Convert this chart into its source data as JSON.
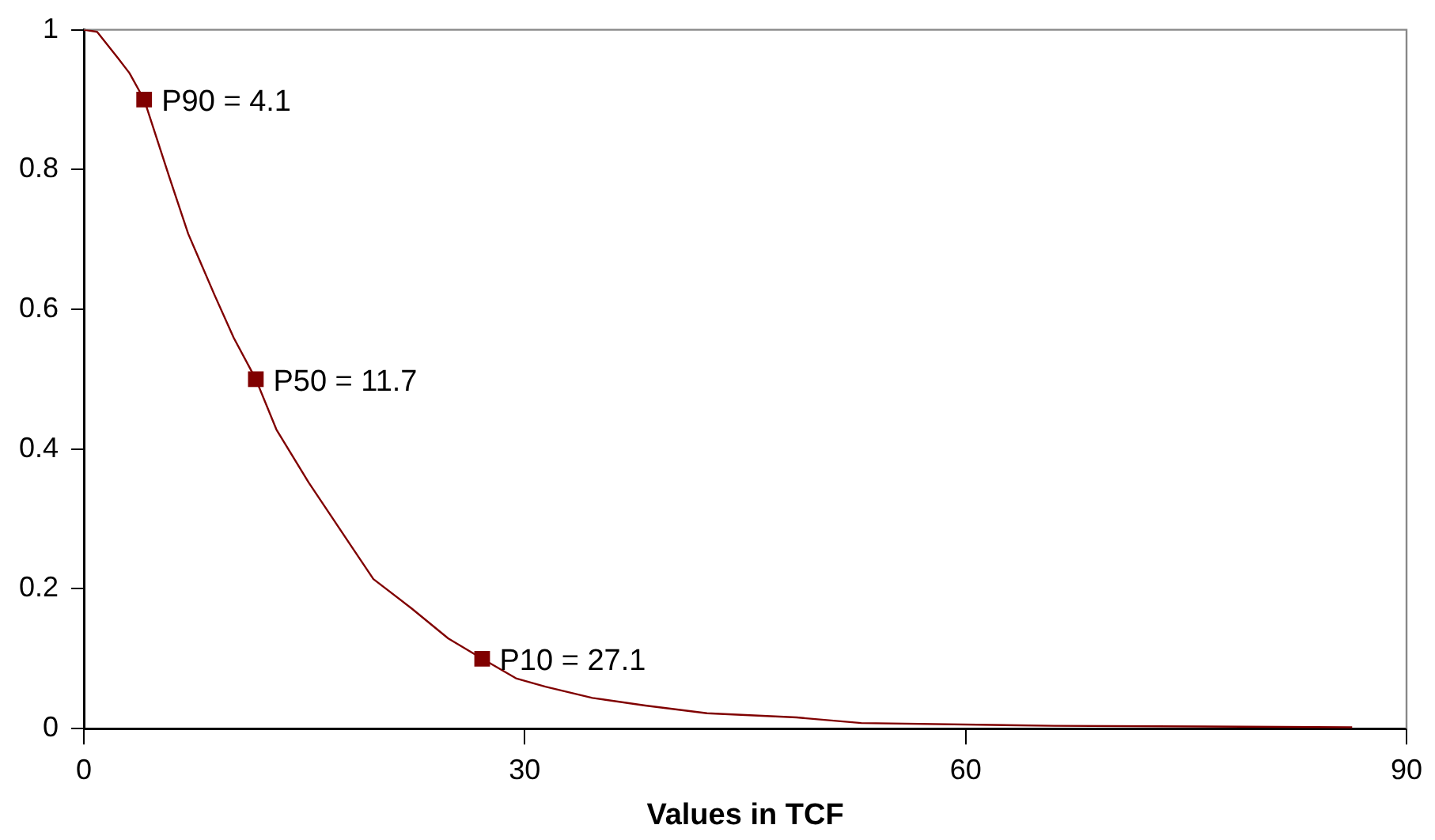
{
  "chart_data": {
    "type": "line",
    "xlabel": "Values in TCF",
    "xlim": [
      0,
      90
    ],
    "xticks": [
      0,
      30,
      60,
      90
    ],
    "ylim": [
      0,
      1
    ],
    "yticks": [
      0,
      0.2,
      0.4,
      0.6,
      0.8,
      1
    ],
    "grid": false,
    "legend": false,
    "series": [
      {
        "color": "#800000",
        "marker": "none",
        "line_style": "solid",
        "x": [
          0,
          0.9,
          2.3,
          3.1,
          4.1,
          5.8,
          7.1,
          8.9,
          10.2,
          11.7,
          13.1,
          15.3,
          18.1,
          19.7,
          22.3,
          24.8,
          27.1,
          29.4,
          31.4,
          34.6,
          38.2,
          42.4,
          48.5,
          52.9,
          66,
          86.3
        ],
        "values": [
          1,
          0.997,
          0.96,
          0.938,
          0.9,
          0.79,
          0.708,
          0.62,
          0.559,
          0.5,
          0.428,
          0.352,
          0.264,
          0.214,
          0.172,
          0.129,
          0.1,
          0.072,
          0.06,
          0.044,
          0.033,
          0.022,
          0.016,
          0.008,
          0.004,
          0.002
        ]
      },
      {
        "type": "scatter",
        "color": "#800000",
        "marker": "square",
        "x": [
          4.1,
          11.7,
          27.1
        ],
        "values": [
          0.9,
          0.5,
          0.1
        ]
      }
    ],
    "annotations": [
      {
        "text": "P90 = 4.1",
        "x": 4.1,
        "y": 0.9
      },
      {
        "text": "P50 = 11.7",
        "x": 11.7,
        "y": 0.5
      },
      {
        "text": "P10 = 27.1",
        "x": 27.1,
        "y": 0.1
      }
    ]
  }
}
